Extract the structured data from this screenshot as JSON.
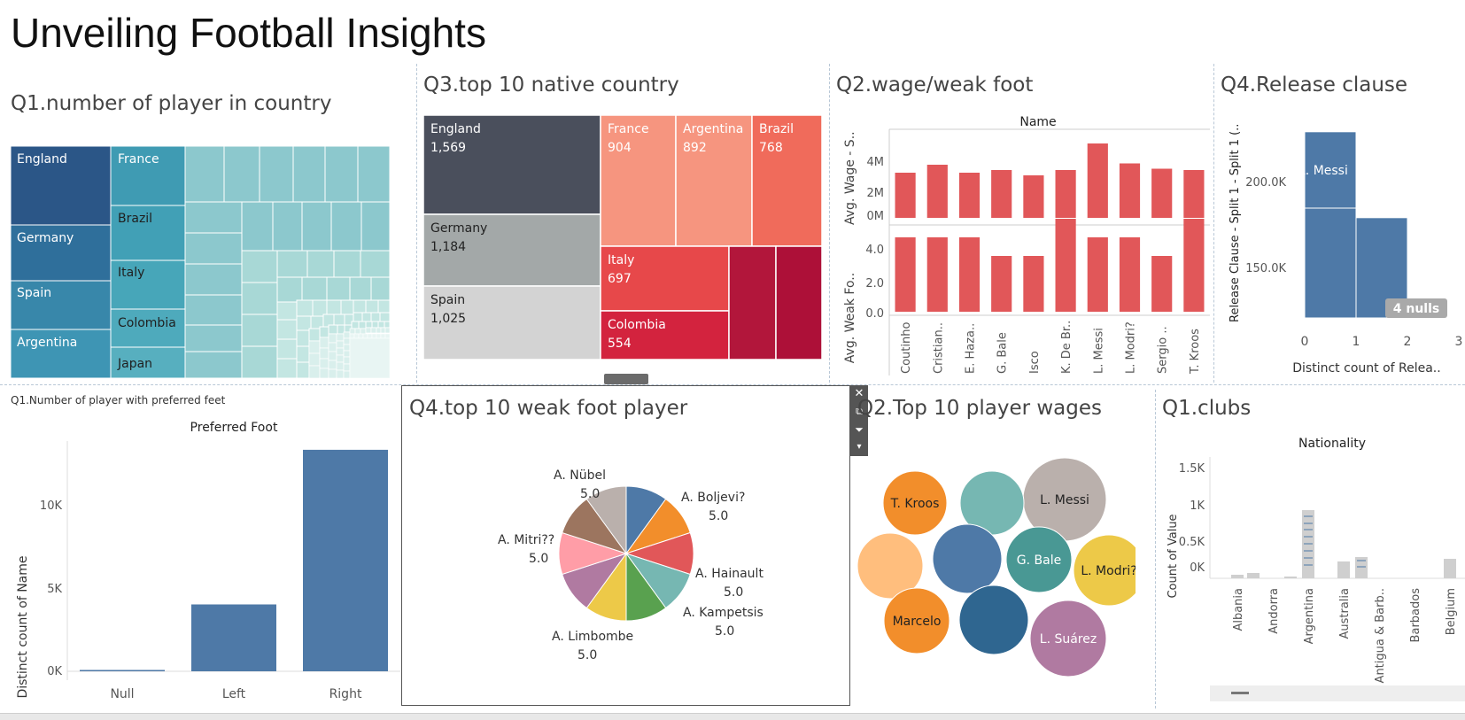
{
  "dashboard": {
    "title": "Unveiling Football Insights"
  },
  "w_q1_country": {
    "title": "Q1.number of player in country",
    "labels": [
      "England",
      "Germany",
      "Spain",
      "Argentina",
      "France",
      "Brazil",
      "Italy",
      "Colombia",
      "Japan"
    ]
  },
  "w_q3": {
    "title": "Q3.top 10 native country",
    "chart_data": {
      "type": "treemap",
      "items": [
        {
          "name": "England",
          "value": 1569,
          "label": "1,569",
          "color": "#4a4f5c"
        },
        {
          "name": "Germany",
          "value": 1184,
          "label": "1,184",
          "color": "#a3a8a8"
        },
        {
          "name": "Spain",
          "value": 1025,
          "label": "1,025",
          "color": "#d3d3d3"
        },
        {
          "name": "France",
          "value": 904,
          "label": "904",
          "color": "#f6957f"
        },
        {
          "name": "Argentina",
          "value": 892,
          "label": "892",
          "color": "#f6957f"
        },
        {
          "name": "Brazil",
          "value": 768,
          "label": "768",
          "color": "#f06b5b"
        },
        {
          "name": "Italy",
          "value": 697,
          "label": "697",
          "color": "#e7484a"
        },
        {
          "name": "Colombia",
          "value": 554,
          "label": "554",
          "color": "#d3233e"
        }
      ]
    }
  },
  "w_q2_wage": {
    "title": "Q2.wage/weak foot",
    "chart_data": {
      "type": "bar",
      "header": "Name",
      "categories": [
        "Coutinho",
        "Cristian..",
        "E. Haza..",
        "G. Bale",
        "Isco",
        "K. De Br..",
        "L. Messi",
        "L. Modri?",
        "Sergio ..",
        "T. Kroos"
      ],
      "series": [
        {
          "name": "Avg. Wage - S..",
          "values": [
            3400000,
            4000000,
            3400000,
            3600000,
            3200000,
            3600000,
            5600000,
            4100000,
            3700000,
            3600000
          ],
          "ticks": [
            "4M",
            "2M",
            "0M"
          ]
        },
        {
          "name": "Avg. Weak Fo..",
          "values": [
            4,
            4,
            4,
            3,
            3,
            5,
            4,
            4,
            3,
            5
          ],
          "ticks": [
            "4.0",
            "2.0",
            "0.0"
          ]
        }
      ],
      "ylabel_top": "Avg. Wage - S..",
      "ylabel_bottom": "Avg. Weak Fo.."
    }
  },
  "w_q4_release": {
    "title": "Q4.Release clause",
    "chart_data": {
      "type": "bar",
      "bars": [
        {
          "x0": 0,
          "x1": 1,
          "top": 230000,
          "label": "L. Messi"
        },
        {
          "x0": 1,
          "x1": 2,
          "top": 180000
        }
      ],
      "xticks": [
        "0",
        "1",
        "2",
        "3"
      ],
      "yticks": [
        "200.0K",
        "150.0K"
      ],
      "ylabel": "Release Clause - Split 1 - Split 1 (..",
      "xlabel": "Distinct count of Relea..",
      "nulls": "4 nulls",
      "ylim": [
        120000,
        240000
      ]
    }
  },
  "w_q1_feet": {
    "title": "Q1.Number of player with preferred feet",
    "chart_data": {
      "type": "bar",
      "header": "Preferred Foot",
      "categories": [
        "Null",
        "Left",
        "Right"
      ],
      "values": [
        48,
        4211,
        13948
      ],
      "yticks": [
        "10K",
        "5K",
        "0K"
      ],
      "ylabel": "Distinct count of Name",
      "ylim": [
        0,
        14500
      ]
    }
  },
  "w_q4_weak": {
    "title": "Q4.top 10 weak foot player",
    "chart_data": {
      "type": "pie",
      "slices": [
        {
          "name": "A. Boljevi?",
          "value": 5.0,
          "color": "#4e79a7",
          "label": "A. Boljevi?",
          "vlabel": "5.0"
        },
        {
          "name": "",
          "value": 5.0,
          "color": "#f28e2b"
        },
        {
          "name": "A. Hainault",
          "value": 5.0,
          "color": "#e15759",
          "label": "A. Hainault",
          "vlabel": "5.0"
        },
        {
          "name": "A. Kampetsis",
          "value": 5.0,
          "color": "#76b7b2",
          "label": "A. Kampetsis",
          "vlabel": "5.0"
        },
        {
          "name": "",
          "value": 5.0,
          "color": "#59a14f"
        },
        {
          "name": "A. Limbombe",
          "value": 5.0,
          "color": "#edc948",
          "label": "A. Limbombe",
          "vlabel": "5.0"
        },
        {
          "name": "",
          "value": 5.0,
          "color": "#b07aa1"
        },
        {
          "name": "A. Mitri??",
          "value": 5.0,
          "color": "#ff9da7",
          "label": "A. Mitri??",
          "vlabel": "5.0"
        },
        {
          "name": "",
          "value": 5.0,
          "color": "#9c755f"
        },
        {
          "name": "A. Nübel",
          "value": 5.0,
          "color": "#bab0ac",
          "label": "A. Nübel",
          "vlabel": "5.0"
        }
      ]
    }
  },
  "w_q2_top": {
    "title": "Q2.Top 10 player wages",
    "chart_data": {
      "type": "bubble",
      "bubbles": [
        {
          "name": "L. Messi",
          "color": "#bab0ac"
        },
        {
          "name": "T. Kroos",
          "color": "#f28e2b"
        },
        {
          "name": "",
          "color": "#76b7b2"
        },
        {
          "name": "",
          "color": "#ffbe7d"
        },
        {
          "name": "",
          "color": "#4e79a7"
        },
        {
          "name": "G. Bale",
          "color": "#499894"
        },
        {
          "name": "L. Modri?",
          "color": "#edc948"
        },
        {
          "name": "Marcelo",
          "color": "#f28e2b"
        },
        {
          "name": "",
          "color": "#2f6690"
        },
        {
          "name": "L. Suárez",
          "color": "#b07aa1"
        }
      ]
    }
  },
  "w_q1_clubs": {
    "title": "Q1.clubs",
    "chart_data": {
      "type": "bar",
      "header": "Nationality",
      "categories": [
        "Albania",
        "Andorra",
        "Argentina",
        "Australia",
        "Antigua & Barb..",
        "Barbados",
        "Belgium"
      ],
      "yticks": [
        "1.5K",
        "1K",
        "0.5K",
        "0K"
      ],
      "ylabel": "Count of Value",
      "ylim": [
        0,
        1600
      ]
    }
  }
}
